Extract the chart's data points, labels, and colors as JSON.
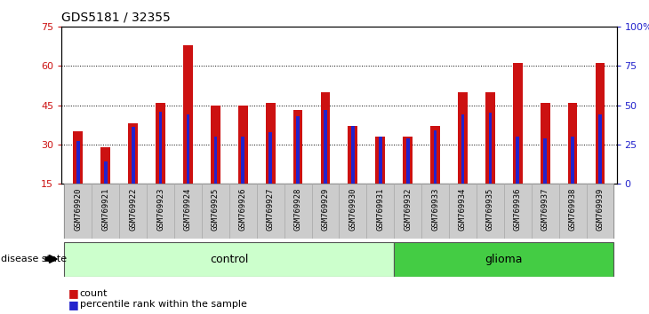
{
  "title": "GDS5181 / 32355",
  "samples": [
    "GSM769920",
    "GSM769921",
    "GSM769922",
    "GSM769923",
    "GSM769924",
    "GSM769925",
    "GSM769926",
    "GSM769927",
    "GSM769928",
    "GSM769929",
    "GSM769930",
    "GSM769931",
    "GSM769932",
    "GSM769933",
    "GSM769934",
    "GSM769935",
    "GSM769936",
    "GSM769937",
    "GSM769938",
    "GSM769939"
  ],
  "counts": [
    35,
    29,
    38,
    46,
    68,
    45,
    45,
    46,
    43,
    50,
    37,
    33,
    33,
    37,
    50,
    50,
    61,
    46,
    46,
    61
  ],
  "percentile_values": [
    27,
    14,
    36,
    46,
    44,
    30,
    30,
    33,
    43,
    47,
    37,
    30,
    29,
    34,
    44,
    45,
    30,
    29,
    30,
    44
  ],
  "control_count": 12,
  "glioma_count": 8,
  "ylim_left": [
    15,
    75
  ],
  "yticks_left": [
    15,
    30,
    45,
    60,
    75
  ],
  "ylim_right": [
    0,
    100
  ],
  "yticks_right": [
    0,
    25,
    50,
    75,
    100
  ],
  "ytick_labels_right": [
    "0",
    "25",
    "50",
    "75",
    "100%"
  ],
  "bar_color": "#cc1111",
  "percentile_color": "#2222cc",
  "bar_width": 0.35,
  "pct_bar_width": 0.12,
  "bg_color_control": "#ccffcc",
  "bg_color_glioma": "#44cc44",
  "tick_bg_color": "#cccccc",
  "tick_border_color": "#aaaaaa",
  "legend_count_label": "count",
  "legend_pct_label": "percentile rank within the sample",
  "disease_state_label": "disease state",
  "control_label": "control",
  "glioma_label": "glioma"
}
